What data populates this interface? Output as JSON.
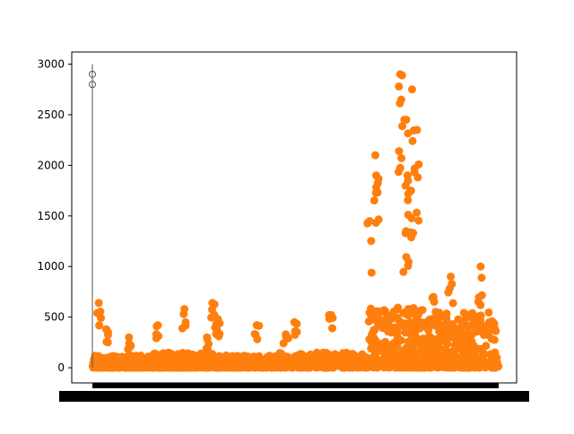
{
  "chart_data": {
    "type": "scatter",
    "title": "",
    "xlabel": "",
    "ylabel": "",
    "ylim": [
      -150,
      3120
    ],
    "yticks": [
      0,
      500,
      1000,
      1500,
      2000,
      2500,
      3000
    ],
    "ytick_labels": [
      "0",
      "500",
      "1000",
      "1500",
      "2000",
      "2500",
      "3000"
    ],
    "x_tick_labels_note": "dense overlapping black tick labels along x axis (unreadable)",
    "grid": false,
    "legend": "none",
    "colors": {
      "points": "#ff7f0e",
      "axes": "#000000",
      "boxplot": "#555555"
    },
    "boxplot": {
      "median": 0,
      "whisker_high": 3000,
      "outliers": [
        2800,
        2900
      ]
    },
    "series": [
      {
        "values_summary": "approximately 2000 points; x index 0-1 normalized",
        "clusters": [
          {
            "x_range": [
              0.0,
              0.15
            ],
            "y_base_max": 120,
            "spikes": [
              300,
              380,
              640
            ]
          },
          {
            "x_range": [
              0.15,
              0.3
            ],
            "y_base_max": 150,
            "spikes": [
              420,
              640,
              580,
              300
            ]
          },
          {
            "x_range": [
              0.3,
              0.45
            ],
            "y_base_max": 120,
            "spikes": [
              420,
              480,
              430
            ]
          },
          {
            "x_range": [
              0.45,
              0.68
            ],
            "y_base_max": 150,
            "spikes": [
              520,
              450,
              330
            ]
          },
          {
            "x_range": [
              0.68,
              0.82
            ],
            "y_base_max": 600,
            "spikes": [
              1900,
              1350,
              1450,
              2900,
              2750,
              2650,
              2450,
              2350,
              2100,
              1900,
              1750
            ]
          },
          {
            "x_range": [
              0.82,
              1.0
            ],
            "y_base_max": 550,
            "spikes": [
              1000,
              900,
              700,
              650
            ]
          }
        ]
      }
    ]
  }
}
